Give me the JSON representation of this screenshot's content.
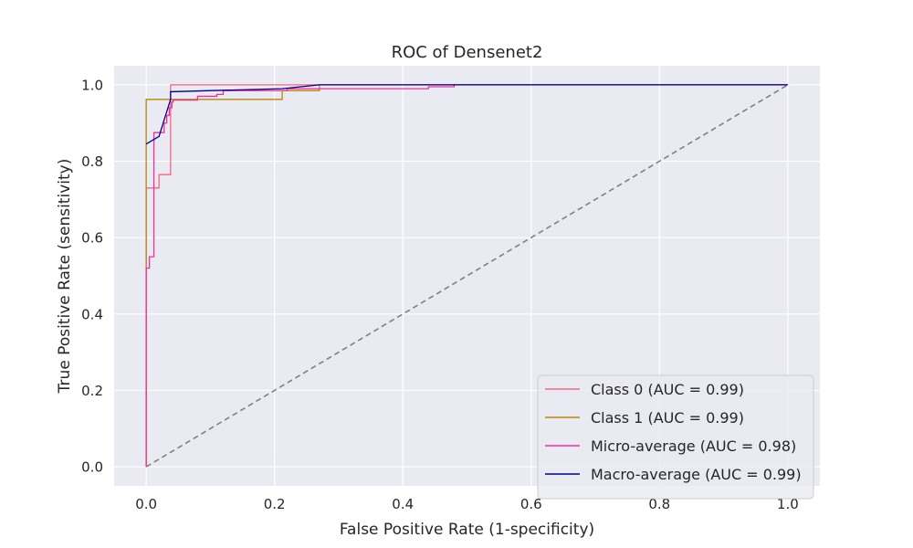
{
  "chart_data": {
    "type": "line",
    "title": "ROC of Densenet2",
    "xlabel": "False Positive Rate (1-specificity)",
    "ylabel": "True Positive Rate (sensitivity)",
    "xlim": [
      -0.05,
      1.05
    ],
    "ylim": [
      -0.05,
      1.05
    ],
    "xticks": [
      0.0,
      0.2,
      0.4,
      0.6,
      0.8,
      1.0
    ],
    "yticks": [
      0.0,
      0.2,
      0.4,
      0.6,
      0.8,
      1.0
    ],
    "xtick_labels": [
      "0.0",
      "0.2",
      "0.4",
      "0.6",
      "0.8",
      "1.0"
    ],
    "ytick_labels": [
      "0.0",
      "0.2",
      "0.4",
      "0.6",
      "0.8",
      "1.0"
    ],
    "grid": true,
    "legend_position": "lower-right",
    "background": "#eaeaf2",
    "series": [
      {
        "name": "Class 0 (AUC = 0.99)",
        "color": "#f5677f",
        "x": [
          0.0,
          0.0,
          0.0,
          0.01,
          0.01,
          0.02,
          0.02,
          0.038,
          0.038,
          1.0
        ],
        "y": [
          0.0,
          0.52,
          0.73,
          0.73,
          0.73,
          0.73,
          0.765,
          0.765,
          1.0,
          1.0
        ]
      },
      {
        "name": "Class 1 (AUC = 0.99)",
        "color": "#b8860b",
        "x": [
          0.0,
          0.0,
          0.0,
          0.212,
          0.212,
          0.27,
          0.27,
          1.0
        ],
        "y": [
          0.0,
          0.73,
          0.962,
          0.962,
          0.985,
          0.985,
          1.0,
          1.0
        ]
      },
      {
        "name": "Micro-average (AUC = 0.98)",
        "color": "#f0309a",
        "x": [
          0.0,
          0.0,
          0.005,
          0.005,
          0.012,
          0.012,
          0.02,
          0.02,
          0.028,
          0.028,
          0.032,
          0.032,
          0.036,
          0.036,
          0.04,
          0.04,
          0.042,
          0.042,
          0.08,
          0.08,
          0.11,
          0.11,
          0.12,
          0.12,
          0.22,
          0.22,
          0.44,
          0.44,
          0.48,
          0.48,
          1.0
        ],
        "y": [
          0.0,
          0.52,
          0.52,
          0.55,
          0.55,
          0.875,
          0.875,
          0.875,
          0.875,
          0.9,
          0.9,
          0.92,
          0.92,
          0.94,
          0.94,
          0.955,
          0.955,
          0.96,
          0.96,
          0.97,
          0.97,
          0.975,
          0.975,
          0.985,
          0.985,
          0.99,
          0.99,
          0.995,
          0.995,
          1.0,
          1.0
        ]
      },
      {
        "name": "Macro-average (AUC = 0.99)",
        "color": "#00008b",
        "x": [
          0.0,
          0.02,
          0.038,
          0.038,
          0.212,
          0.27,
          1.0
        ],
        "y": [
          0.845,
          0.865,
          0.962,
          0.982,
          0.99,
          1.0,
          1.0
        ]
      },
      {
        "name": "",
        "color": "#808080",
        "dashed": true,
        "x": [
          0.0,
          1.0
        ],
        "y": [
          0.0,
          1.0
        ]
      }
    ]
  }
}
